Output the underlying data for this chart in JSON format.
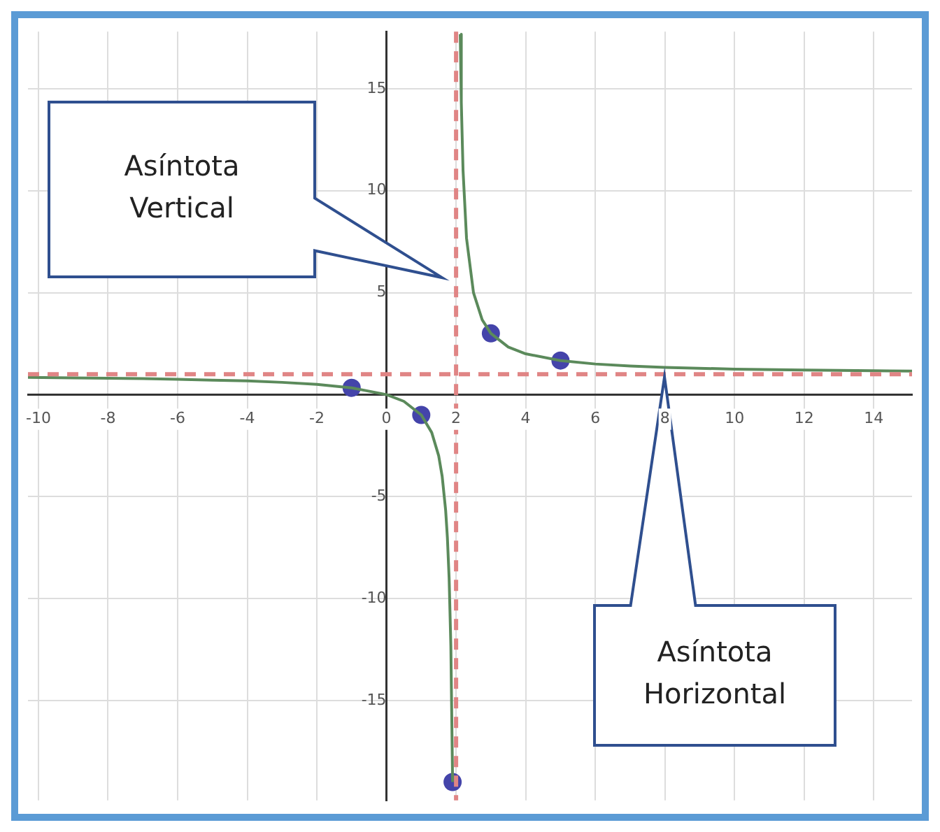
{
  "chart_data": {
    "type": "line",
    "xlim": [
      -10.3,
      15.1
    ],
    "ylim": [
      -19.9,
      17.8
    ],
    "xticks": [
      -10,
      -8,
      -6,
      -4,
      -2,
      0,
      2,
      4,
      6,
      8,
      10,
      12,
      14
    ],
    "yticks": [
      -15,
      -10,
      -5,
      {
        "value": 0,
        "label": null
      },
      5,
      10,
      15
    ],
    "grid": true,
    "legend": false,
    "series": [
      {
        "type": "line",
        "color": "#5b8a5b",
        "marker": "none",
        "x": [
          -10.3,
          -9,
          -8,
          -7,
          -6,
          -5,
          -4,
          -3,
          -2,
          -1,
          0,
          0.5,
          1,
          1.3,
          1.5,
          1.6,
          1.7,
          1.75,
          1.8,
          1.85,
          1.9,
          2,
          2.12,
          2.15,
          2.2,
          2.3,
          2.5,
          2.75,
          3,
          3.5,
          4,
          5,
          6,
          7,
          8,
          10,
          12,
          14,
          15.1
        ],
        "values": [
          0.84,
          0.82,
          0.8,
          0.78,
          0.75,
          0.71,
          0.67,
          0.6,
          0.5,
          0.33,
          0,
          -0.33,
          -1,
          -1.86,
          -3,
          -4,
          -5.67,
          -7,
          -9,
          -12.33,
          -19,
          null,
          17.67,
          14.33,
          11,
          7.67,
          5,
          3.67,
          3,
          2.33,
          2,
          1.67,
          1.5,
          1.4,
          1.33,
          1.25,
          1.2,
          1.17,
          1.15
        ]
      },
      {
        "type": "scatter",
        "color": "#4444aa",
        "marker": "circle",
        "x": [
          -1,
          1,
          1.9,
          3,
          5
        ],
        "values": [
          0.33,
          -1,
          -19,
          3,
          1.67
        ]
      }
    ],
    "ref_lines": [
      {
        "axis": "x",
        "value": 2,
        "color": "#e08585",
        "line_style": "dashed"
      },
      {
        "axis": "y",
        "value": 1,
        "color": "#e08585",
        "line_style": "dashed"
      }
    ],
    "annotations": [
      "Asíntota Vertical",
      "Asíntota Horizontal"
    ]
  }
}
